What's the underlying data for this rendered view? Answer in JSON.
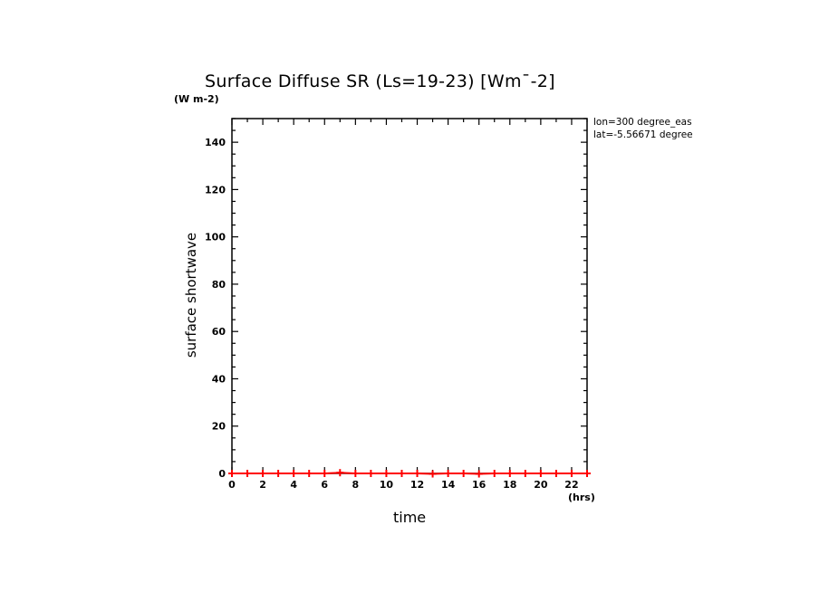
{
  "chart_data": {
    "type": "line",
    "title": "Surface Diffuse SR (Ls=19-23) [Wm¯-2]",
    "ylabel": "surface shortwave",
    "yunits": "(W m-2)",
    "xlabel": "time",
    "xunits": "(hrs)",
    "annotations": [
      "lon=300 degree_eas",
      "lat=-5.56671 degree"
    ],
    "xlim": [
      0,
      23
    ],
    "ylim": [
      0,
      150
    ],
    "x_ticks": [
      "0",
      "2",
      "4",
      "6",
      "8",
      "10",
      "12",
      "14",
      "16",
      "18",
      "20",
      "22"
    ],
    "y_ticks": [
      "0",
      "20",
      "40",
      "60",
      "80",
      "100",
      "120",
      "140"
    ],
    "series": [
      {
        "color": "#ff0000",
        "marker": "plus",
        "x": [
          0,
          1,
          2,
          3,
          4,
          5,
          6,
          7,
          8,
          9,
          10,
          11,
          12,
          13,
          14,
          15,
          16,
          17,
          18,
          19,
          20,
          21,
          22,
          23
        ],
        "y": [
          0,
          0,
          0,
          0,
          0,
          0,
          0,
          0.3,
          0,
          0,
          0,
          0,
          0,
          -0.2,
          0,
          0,
          -0.2,
          0,
          0,
          0,
          0,
          0,
          0,
          0
        ]
      }
    ]
  }
}
